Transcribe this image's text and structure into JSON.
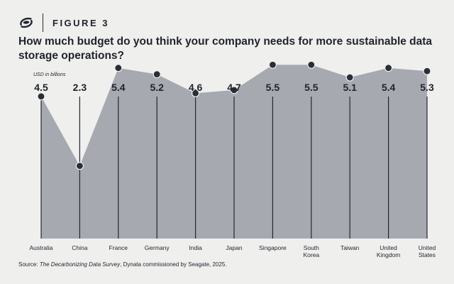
{
  "header": {
    "figure_label": "FIGURE 3",
    "logo_icon": "seagate-logo-icon"
  },
  "title": "How much budget do you think your company needs for more sustainable data storage operations?",
  "unit_label": "USD in billions",
  "source": {
    "prefix": "Source: ",
    "survey": "The Decarbonizing Data Survey",
    "suffix": ", Dynata commissioned by Seagate, 2025."
  },
  "colors": {
    "background": "#efefee",
    "area_fill": "#a7a9b1",
    "line": "#23272e",
    "point": "#2a2e36",
    "text": "#1f232b"
  },
  "chart_data": {
    "type": "area",
    "categories": [
      "Australia",
      "China",
      "France",
      "Germany",
      "India",
      "Japan",
      "Singapore",
      "South Korea",
      "Taiwan",
      "United Kingdom",
      "United States"
    ],
    "category_lines": [
      [
        "Australia"
      ],
      [
        "China"
      ],
      [
        "France"
      ],
      [
        "Germany"
      ],
      [
        "India"
      ],
      [
        "Japan"
      ],
      [
        "Singapore"
      ],
      [
        "South",
        "Korea"
      ],
      [
        "Taiwan"
      ],
      [
        "United",
        "Kingdom"
      ],
      [
        "United",
        "States"
      ]
    ],
    "values": [
      4.5,
      2.3,
      5.4,
      5.2,
      4.6,
      4.7,
      5.5,
      5.5,
      5.1,
      5.4,
      5.3
    ],
    "value_labels": [
      "4.5",
      "2.3",
      "5.4",
      "5.2",
      "4.6",
      "4.7",
      "5.5",
      "5.5",
      "5.1",
      "5.4",
      "5.3"
    ],
    "ylabel": "USD in billions",
    "ylim": [
      0,
      6
    ],
    "grid": false,
    "legend": "none"
  }
}
